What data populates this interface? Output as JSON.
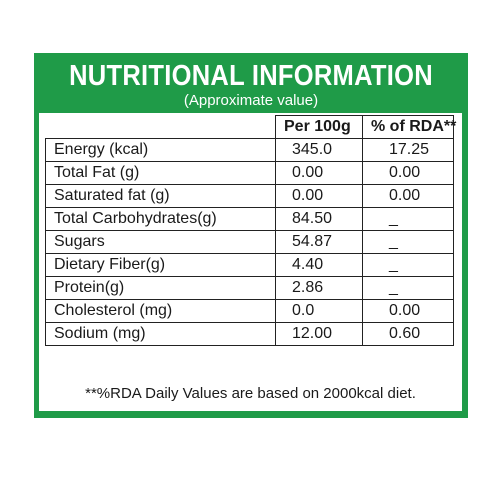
{
  "header": {
    "title": "NUTRITIONAL INFORMATION",
    "subtitle": "(Approximate value)"
  },
  "columns": [
    "",
    "Per 100g",
    "% of RDA**"
  ],
  "rows": [
    {
      "nutrient": "Energy (kcal)",
      "per_100g": "345.0",
      "rda": "17.25"
    },
    {
      "nutrient": "Total Fat (g)",
      "per_100g": "0.00",
      "rda": "0.00"
    },
    {
      "nutrient": "Saturated fat (g)",
      "per_100g": "0.00",
      "rda": "0.00"
    },
    {
      "nutrient": "Total Carbohydrates(g)",
      "per_100g": "84.50",
      "rda": "_"
    },
    {
      "nutrient": "Sugars",
      "per_100g": "54.87",
      "rda": "_"
    },
    {
      "nutrient": "Dietary Fiber(g)",
      "per_100g": "4.40",
      "rda": "_"
    },
    {
      "nutrient": "Protein(g)",
      "per_100g": "2.86",
      "rda": "_"
    },
    {
      "nutrient": "Cholesterol (mg)",
      "per_100g": "0.0",
      "rda": "0.00"
    },
    {
      "nutrient": "Sodium (mg)",
      "per_100g": "12.00",
      "rda": "0.60"
    }
  ],
  "footnote": "**%RDA Daily Values are based on 2000kcal diet.",
  "colors": {
    "panel_green": "#1f9b48",
    "text": "#1a1a1a",
    "background": "#ffffff"
  }
}
